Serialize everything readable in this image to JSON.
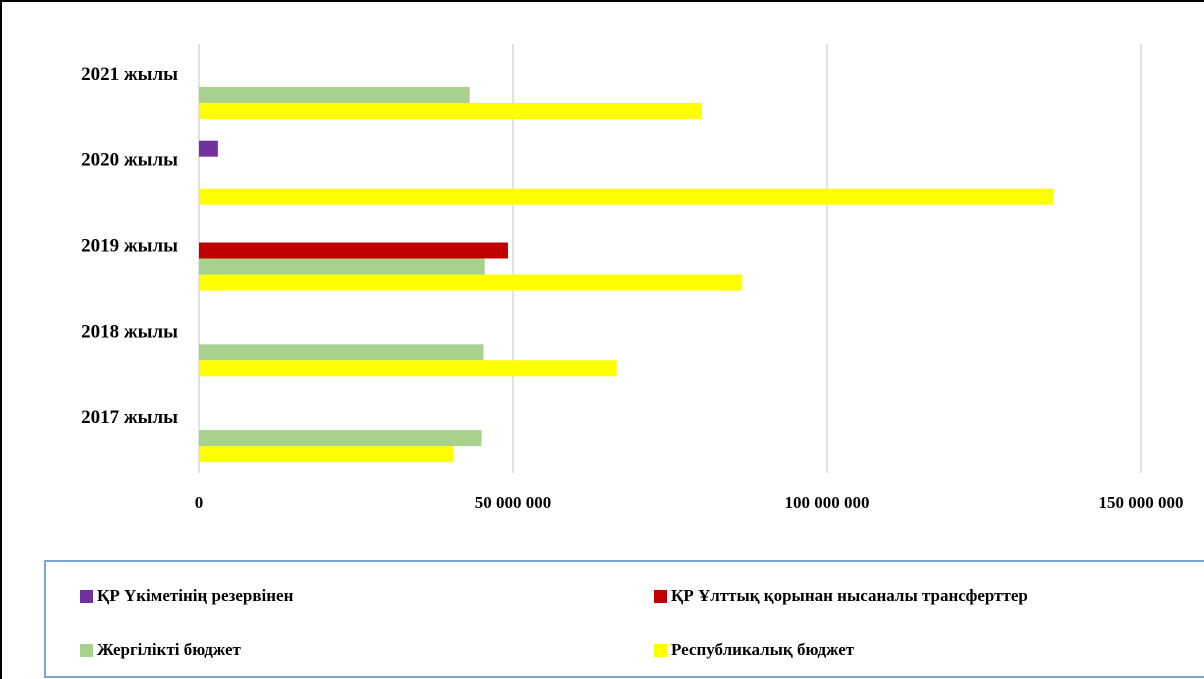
{
  "chart_data": {
    "type": "bar",
    "orientation": "horizontal",
    "categories": [
      "2021 жылы",
      "2020 жылы",
      "2019 жылы",
      "2018 жылы",
      "2017 жылы"
    ],
    "series": [
      {
        "name": "ҚР Үкіметінің резервінен",
        "color": "#7030a0",
        "values": [
          null,
          3000000,
          null,
          null,
          null
        ]
      },
      {
        "name": "ҚР Ұлттық қорынан нысаналы трансферттер",
        "color": "#c00000",
        "values": [
          null,
          null,
          49200000,
          null,
          null
        ]
      },
      {
        "name": "Жергілікті бюджет",
        "color": "#a9d18e",
        "values": [
          43100000,
          null,
          45500000,
          45300000,
          45000000
        ]
      },
      {
        "name": "Республикалық бюджет",
        "color": "#ffff00",
        "values": [
          80100000,
          136000000,
          86500000,
          66500000,
          40500000
        ]
      }
    ],
    "xlim": [
      0,
      150000000
    ],
    "xticks": [
      0,
      50000000,
      100000000,
      150000000
    ],
    "xtick_labels": [
      "0",
      "50 000 000",
      "100 000 000",
      "150 000 000"
    ],
    "grid": true,
    "legend_position": "bottom"
  }
}
